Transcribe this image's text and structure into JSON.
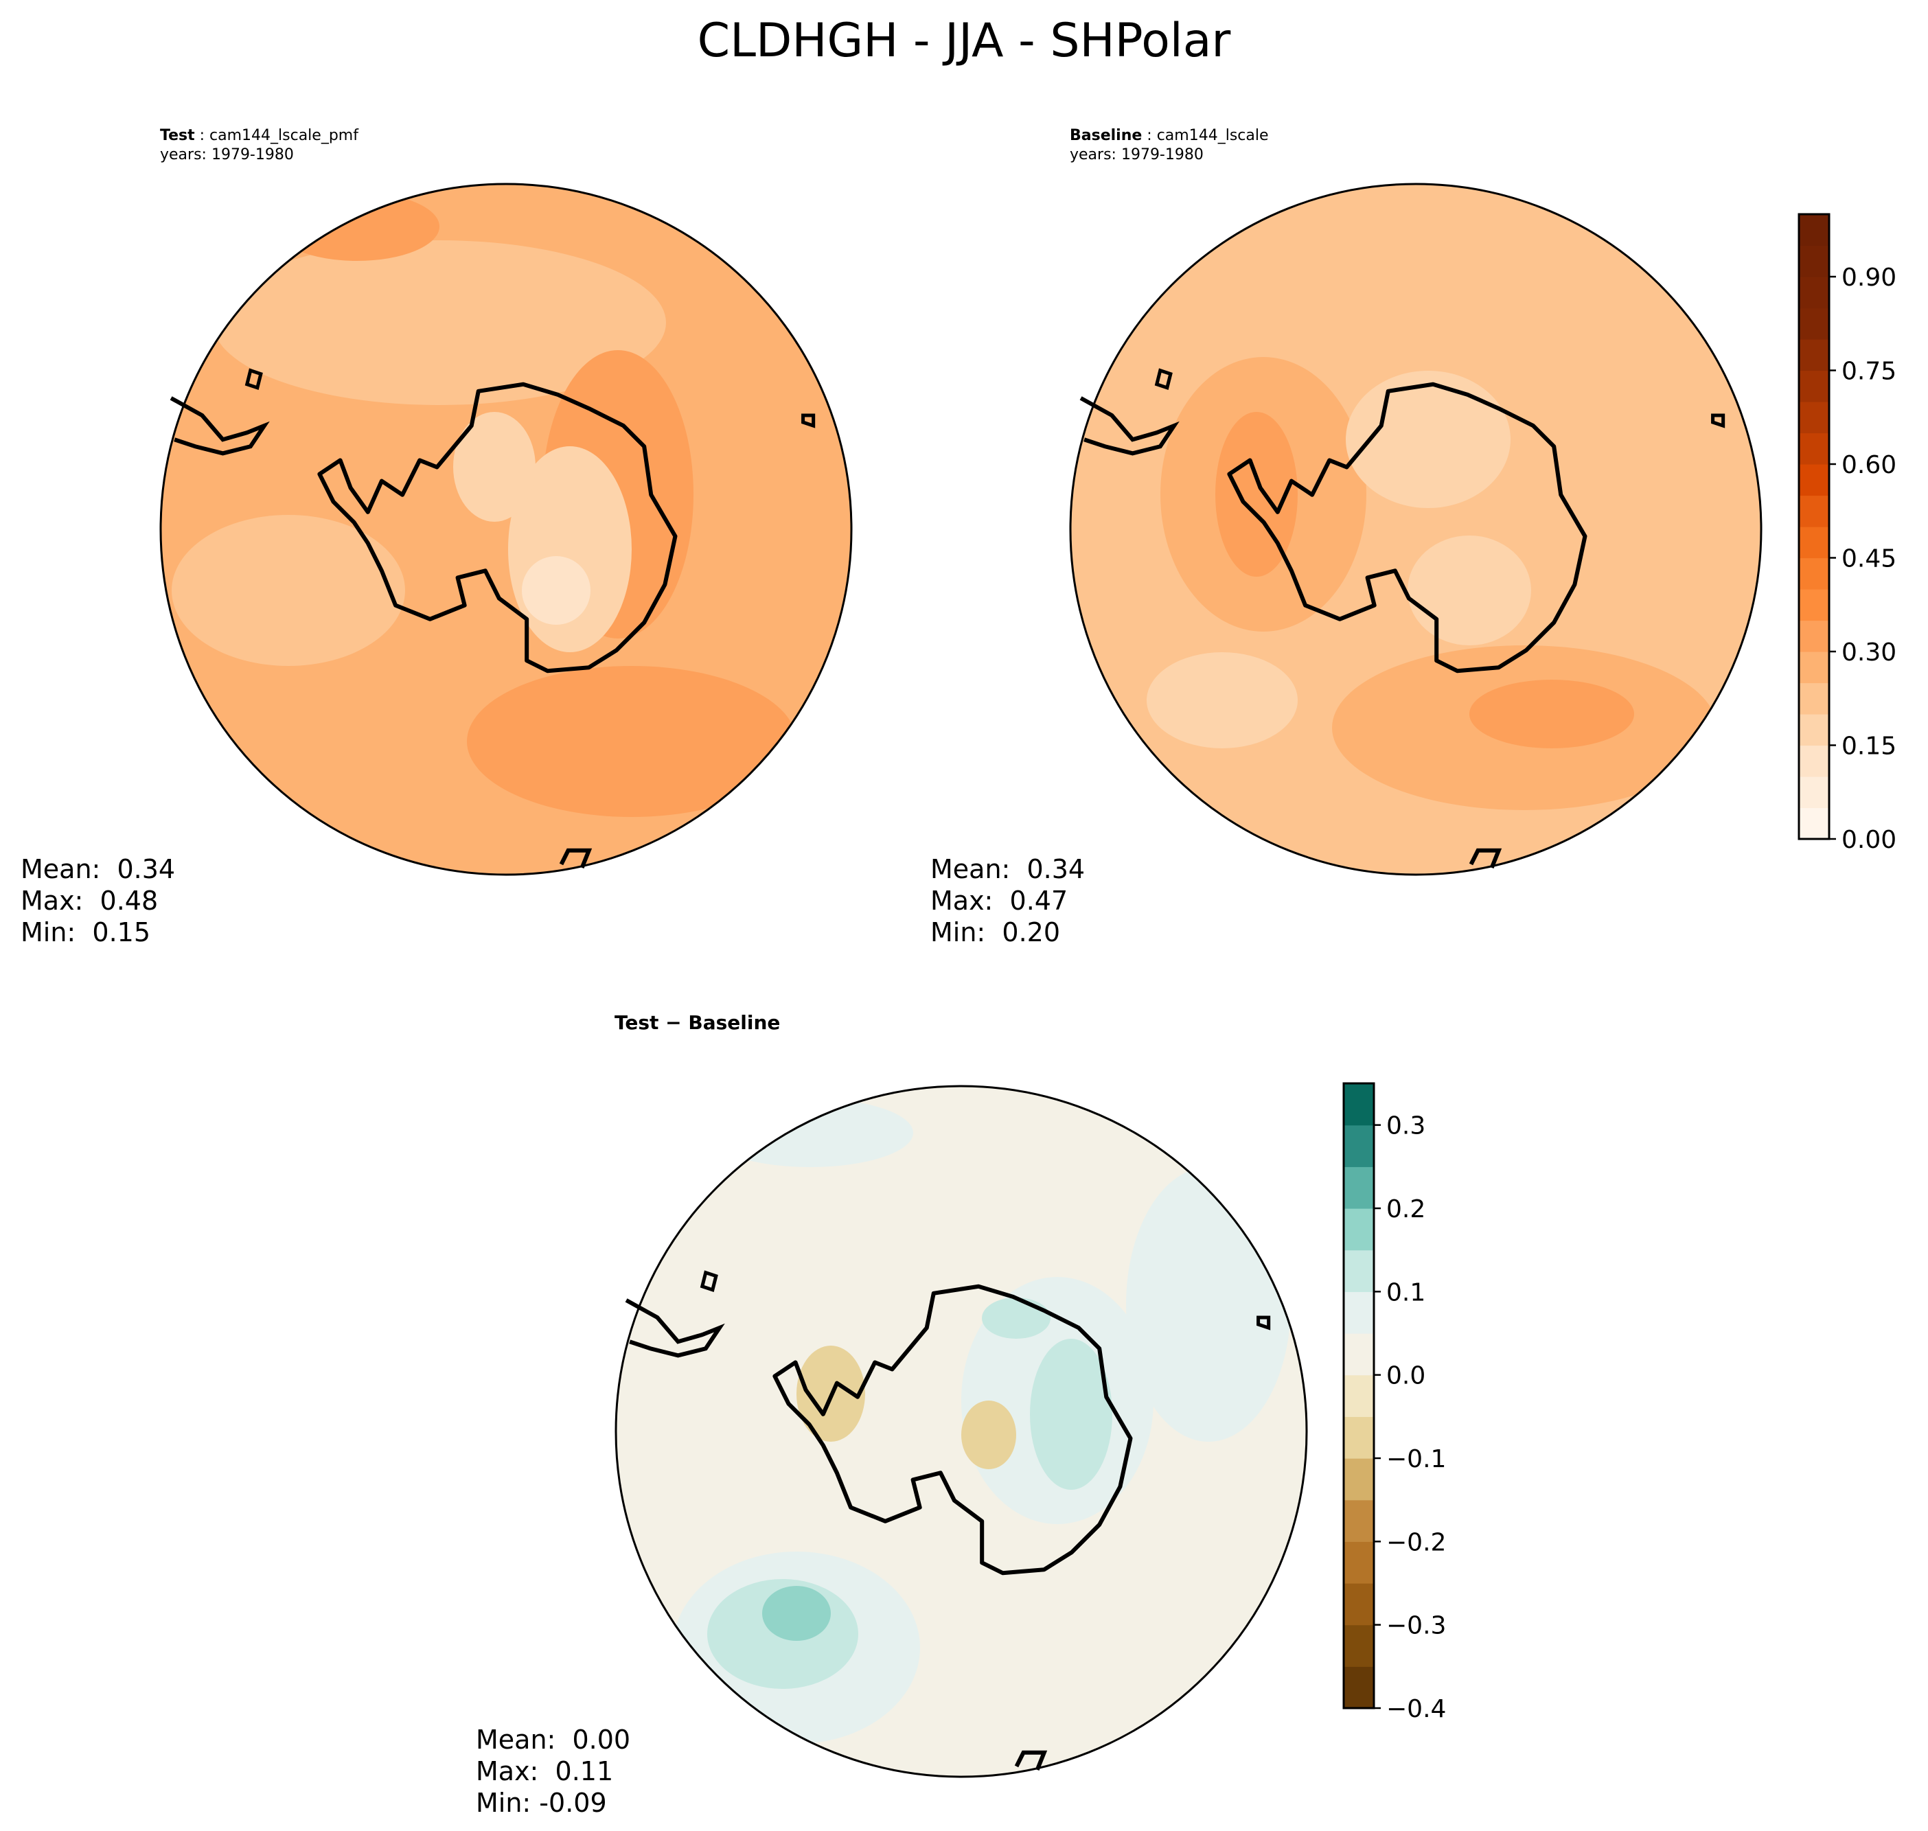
{
  "figure": {
    "title": "CLDHGH - JJA - SHPolar"
  },
  "panels": {
    "test": {
      "label": "Test",
      "case": "cam144_lscale_pmf",
      "years": "years: 1979-1980",
      "stats": {
        "mean": "Mean:  0.34",
        "max": "Max:  0.48",
        "min": "Min:  0.15"
      }
    },
    "baseline": {
      "label": "Baseline",
      "case": "cam144_lscale",
      "years": "years: 1979-1980",
      "stats": {
        "mean": "Mean:  0.34",
        "max": "Max:  0.47",
        "min": "Min:  0.20"
      }
    },
    "diff": {
      "label": "Test − Baseline",
      "stats": {
        "mean": "Mean:  0.00",
        "max": "Max:  0.11",
        "min": "Min: -0.09"
      }
    }
  },
  "colorbars": {
    "main": {
      "colormap": "Oranges",
      "range": [
        0.0,
        1.0
      ],
      "levels": 20,
      "tick_labels": [
        "0.00",
        "0.15",
        "0.30",
        "0.45",
        "0.60",
        "0.75",
        "0.90"
      ],
      "tick_values": [
        0.0,
        0.15,
        0.3,
        0.45,
        0.6,
        0.75,
        0.9
      ],
      "colors": [
        "#fff5eb",
        "#feeddb",
        "#fee3c8",
        "#fdd4ab",
        "#fdc48f",
        "#fdb272",
        "#fda05a",
        "#fd8d3c",
        "#f87f2c",
        "#f16d1a",
        "#e65c0f",
        "#d94801",
        "#c54102",
        "#b23a03",
        "#a03303",
        "#8f2d04",
        "#7f2704",
        "#7a2504",
        "#742304",
        "#6e2104"
      ]
    },
    "diff": {
      "colormap": "BrBG",
      "range": [
        -0.4,
        0.35
      ],
      "tick_labels": [
        "−0.4",
        "−0.3",
        "−0.2",
        "−0.1",
        "0.0",
        "0.1",
        "0.2",
        "0.3"
      ],
      "tick_values": [
        -0.4,
        -0.3,
        -0.2,
        -0.1,
        0.0,
        0.1,
        0.2,
        0.3
      ],
      "boundaries": [
        -0.4,
        -0.35,
        -0.3,
        -0.25,
        -0.2,
        -0.15,
        -0.1,
        -0.05,
        0.0,
        0.05,
        0.1,
        0.15,
        0.2,
        0.25,
        0.3,
        0.35
      ],
      "colors": [
        "#653a07",
        "#7e4c0c",
        "#9a5e16",
        "#b37428",
        "#c28a3f",
        "#d4b069",
        "#e8d39b",
        "#f2e6c3",
        "#f4f1e6",
        "#e6f1ef",
        "#c6e8e1",
        "#92d4c8",
        "#5bb2a6",
        "#2b8b81",
        "#086a5e",
        "#004b3e"
      ]
    }
  }
}
